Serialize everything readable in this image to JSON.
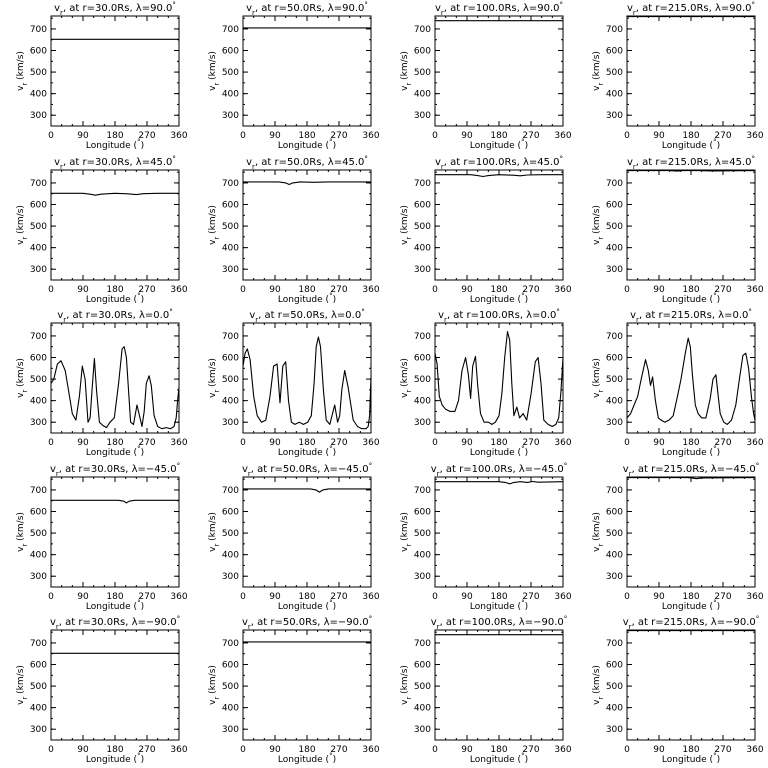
{
  "chart_data": [
    {
      "type": "line",
      "title": "v_r at r=30.0Rs, λ=90.0°",
      "r_label": "30.0",
      "lat_label": "90.0",
      "xlabel": "Longitude (°)",
      "ylabel": "v_r (km/s)",
      "xlim": [
        0,
        360
      ],
      "ylim": [
        250,
        760
      ],
      "xticks": [
        0,
        90,
        180,
        270,
        360
      ],
      "yticks": [
        300,
        400,
        500,
        600,
        700
      ],
      "x": [
        0,
        360
      ],
      "y": [
        652,
        652
      ]
    },
    {
      "type": "line",
      "title": "v_r at r=50.0Rs, λ=90.0°",
      "r_label": "50.0",
      "lat_label": "90.0",
      "xlabel": "Longitude (°)",
      "ylabel": "v_r (km/s)",
      "xlim": [
        0,
        360
      ],
      "ylim": [
        250,
        760
      ],
      "xticks": [
        0,
        90,
        180,
        270,
        360
      ],
      "yticks": [
        300,
        400,
        500,
        600,
        700
      ],
      "x": [
        0,
        360
      ],
      "y": [
        705,
        705
      ]
    },
    {
      "type": "line",
      "title": "v_r at r=100.0Rs, λ=90.0°",
      "r_label": "100.0",
      "lat_label": "90.0",
      "xlabel": "Longitude (°)",
      "ylabel": "v_r (km/s)",
      "xlim": [
        0,
        360
      ],
      "ylim": [
        250,
        760
      ],
      "xticks": [
        0,
        90,
        180,
        270,
        360
      ],
      "yticks": [
        300,
        400,
        500,
        600,
        700
      ],
      "x": [
        0,
        360
      ],
      "y": [
        738,
        738
      ]
    },
    {
      "type": "line",
      "title": "v_r at r=215.0Rs, λ=90.0°",
      "r_label": "215.0",
      "lat_label": "90.0",
      "xlabel": "Longitude (°)",
      "ylabel": "v_r (km/s)",
      "xlim": [
        0,
        360
      ],
      "ylim": [
        250,
        760
      ],
      "xticks": [
        0,
        90,
        180,
        270,
        360
      ],
      "yticks": [
        300,
        400,
        500,
        600,
        700
      ],
      "x": [
        0,
        360
      ],
      "y": [
        757,
        757
      ]
    },
    {
      "type": "line",
      "title": "v_r at r=30.0Rs, λ=45.0°",
      "r_label": "30.0",
      "lat_label": "45.0",
      "xlabel": "Longitude (°)",
      "ylabel": "v_r (km/s)",
      "xlim": [
        0,
        360
      ],
      "ylim": [
        250,
        760
      ],
      "xticks": [
        0,
        90,
        180,
        270,
        360
      ],
      "yticks": [
        300,
        400,
        500,
        600,
        700
      ],
      "x": [
        0,
        90,
        110,
        125,
        140,
        180,
        220,
        240,
        260,
        300,
        360
      ],
      "y": [
        652,
        652,
        648,
        643,
        648,
        652,
        649,
        646,
        650,
        652,
        652
      ]
    },
    {
      "type": "line",
      "title": "v_r at r=50.0Rs, λ=45.0°",
      "r_label": "50.0",
      "lat_label": "45.0",
      "xlabel": "Longitude (°)",
      "ylabel": "v_r (km/s)",
      "xlim": [
        0,
        360
      ],
      "ylim": [
        250,
        760
      ],
      "xticks": [
        0,
        90,
        180,
        270,
        360
      ],
      "yticks": [
        300,
        400,
        500,
        600,
        700
      ],
      "x": [
        0,
        100,
        120,
        130,
        140,
        160,
        200,
        240,
        360
      ],
      "y": [
        705,
        705,
        700,
        693,
        700,
        705,
        703,
        705,
        705
      ]
    },
    {
      "type": "line",
      "title": "v_r at r=100.0Rs, λ=45.0°",
      "r_label": "100.0",
      "lat_label": "45.0",
      "xlabel": "Longitude (°)",
      "ylabel": "v_r (km/s)",
      "xlim": [
        0,
        360
      ],
      "ylim": [
        250,
        760
      ],
      "xticks": [
        0,
        90,
        180,
        270,
        360
      ],
      "yticks": [
        300,
        400,
        500,
        600,
        700
      ],
      "x": [
        0,
        100,
        120,
        135,
        150,
        180,
        220,
        240,
        260,
        300,
        360
      ],
      "y": [
        738,
        738,
        734,
        730,
        734,
        738,
        736,
        733,
        737,
        738,
        738
      ]
    },
    {
      "type": "line",
      "title": "v_r at r=215.0Rs, λ=45.0°",
      "r_label": "215.0",
      "lat_label": "45.0",
      "xlabel": "Longitude (°)",
      "ylabel": "v_r (km/s)",
      "xlim": [
        0,
        360
      ],
      "ylim": [
        250,
        760
      ],
      "xticks": [
        0,
        90,
        180,
        270,
        360
      ],
      "yticks": [
        300,
        400,
        500,
        600,
        700
      ],
      "x": [
        0,
        120,
        140,
        160,
        200,
        240,
        360
      ],
      "y": [
        757,
        757,
        755,
        757,
        757,
        756,
        757
      ]
    },
    {
      "type": "line",
      "title": "v_r at r=30.0Rs, λ=0.0°",
      "r_label": "30.0",
      "lat_label": "0.0",
      "xlabel": "Longitude (°)",
      "ylabel": "v_r (km/s)",
      "xlim": [
        0,
        360
      ],
      "ylim": [
        250,
        760
      ],
      "xticks": [
        0,
        90,
        180,
        270,
        360
      ],
      "yticks": [
        300,
        400,
        500,
        600,
        700
      ],
      "x": [
        0,
        8,
        18,
        28,
        40,
        52,
        60,
        70,
        80,
        88,
        96,
        104,
        110,
        116,
        122,
        128,
        136,
        146,
        156,
        166,
        178,
        190,
        200,
        206,
        212,
        218,
        224,
        232,
        242,
        256,
        262,
        268,
        276,
        282,
        290,
        300,
        312,
        324,
        336,
        346,
        352,
        356,
        360
      ],
      "y": [
        480,
        500,
        570,
        585,
        540,
        420,
        340,
        310,
        420,
        560,
        500,
        300,
        320,
        460,
        595,
        450,
        300,
        285,
        275,
        300,
        320,
        480,
        640,
        650,
        600,
        450,
        300,
        290,
        380,
        280,
        350,
        480,
        515,
        470,
        330,
        280,
        270,
        275,
        270,
        280,
        320,
        400,
        460
      ]
    },
    {
      "type": "line",
      "title": "v_r at r=50.0Rs, λ=0.0°",
      "r_label": "50.0",
      "lat_label": "0.0",
      "xlabel": "Longitude (°)",
      "ylabel": "v_r (km/s)",
      "xlim": [
        0,
        360
      ],
      "ylim": [
        250,
        760
      ],
      "xticks": [
        0,
        90,
        180,
        270,
        360
      ],
      "yticks": [
        300,
        400,
        500,
        600,
        700
      ],
      "x": [
        0,
        6,
        12,
        20,
        30,
        40,
        52,
        64,
        76,
        86,
        96,
        104,
        112,
        120,
        128,
        136,
        146,
        158,
        170,
        182,
        192,
        200,
        206,
        212,
        218,
        226,
        234,
        244,
        258,
        266,
        272,
        278,
        286,
        296,
        310,
        322,
        334,
        346,
        352,
        356,
        360
      ],
      "y": [
        560,
        620,
        640,
        590,
        420,
        330,
        300,
        310,
        420,
        560,
        570,
        390,
        560,
        580,
        400,
        300,
        290,
        300,
        290,
        300,
        330,
        480,
        650,
        695,
        650,
        450,
        310,
        290,
        380,
        300,
        330,
        450,
        540,
        460,
        310,
        280,
        270,
        270,
        280,
        330,
        510
      ]
    },
    {
      "type": "line",
      "title": "v_r at r=100.0Rs, λ=0.0°",
      "r_label": "100.0",
      "lat_label": "0.0",
      "xlabel": "Longitude (°)",
      "ylabel": "v_r (km/s)",
      "xlim": [
        0,
        360
      ],
      "ylim": [
        250,
        760
      ],
      "xticks": [
        0,
        90,
        180,
        270,
        360
      ],
      "yticks": [
        300,
        400,
        500,
        600,
        700
      ],
      "x": [
        0,
        6,
        12,
        20,
        30,
        42,
        56,
        66,
        76,
        86,
        94,
        100,
        106,
        114,
        120,
        128,
        138,
        150,
        160,
        170,
        180,
        188,
        196,
        204,
        210,
        216,
        222,
        230,
        238,
        248,
        258,
        270,
        282,
        290,
        298,
        306,
        318,
        330,
        340,
        348,
        354,
        360
      ],
      "y": [
        620,
        570,
        420,
        380,
        360,
        350,
        350,
        400,
        540,
        600,
        520,
        410,
        560,
        605,
        470,
        340,
        300,
        300,
        290,
        300,
        330,
        430,
        600,
        720,
        680,
        480,
        330,
        370,
        320,
        340,
        310,
        430,
        580,
        600,
        480,
        310,
        290,
        280,
        290,
        320,
        440,
        600
      ]
    },
    {
      "type": "line",
      "title": "v_r at r=215.0Rs, λ=0.0°",
      "r_label": "215.0",
      "lat_label": "0.0",
      "xlabel": "Longitude (°)",
      "ylabel": "v_r (km/s)",
      "xlim": [
        0,
        360
      ],
      "ylim": [
        250,
        760
      ],
      "xticks": [
        0,
        90,
        180,
        270,
        360
      ],
      "yticks": [
        300,
        400,
        500,
        600,
        700
      ],
      "x": [
        0,
        10,
        20,
        30,
        40,
        52,
        60,
        66,
        72,
        80,
        88,
        96,
        106,
        118,
        130,
        142,
        152,
        164,
        172,
        178,
        184,
        192,
        200,
        210,
        222,
        234,
        242,
        250,
        256,
        262,
        272,
        282,
        294,
        306,
        316,
        326,
        334,
        342,
        350,
        356,
        360
      ],
      "y": [
        320,
        340,
        380,
        420,
        500,
        590,
        540,
        470,
        510,
        400,
        320,
        310,
        300,
        310,
        330,
        420,
        500,
        620,
        690,
        650,
        520,
        380,
        340,
        320,
        320,
        410,
        500,
        520,
        430,
        340,
        300,
        290,
        310,
        380,
        500,
        610,
        620,
        550,
        420,
        340,
        310
      ]
    },
    {
      "type": "line",
      "title": "v_r at r=30.0Rs, λ=-45.0°",
      "r_label": "30.0",
      "lat_label": "−45.0",
      "xlabel": "Longitude (°)",
      "ylabel": "v_r (km/s)",
      "xlim": [
        0,
        360
      ],
      "ylim": [
        250,
        760
      ],
      "xticks": [
        0,
        90,
        180,
        270,
        360
      ],
      "yticks": [
        300,
        400,
        500,
        600,
        700
      ],
      "x": [
        0,
        190,
        205,
        212,
        220,
        235,
        360
      ],
      "y": [
        652,
        652,
        648,
        640,
        648,
        652,
        652
      ]
    },
    {
      "type": "line",
      "title": "v_r at r=50.0Rs, λ=-45.0°",
      "r_label": "50.0",
      "lat_label": "−45.0",
      "xlabel": "Longitude (°)",
      "ylabel": "v_r (km/s)",
      "xlim": [
        0,
        360
      ],
      "ylim": [
        250,
        760
      ],
      "xticks": [
        0,
        90,
        180,
        270,
        360
      ],
      "yticks": [
        300,
        400,
        500,
        600,
        700
      ],
      "x": [
        0,
        190,
        205,
        215,
        225,
        240,
        360
      ],
      "y": [
        705,
        705,
        700,
        690,
        700,
        705,
        705
      ]
    },
    {
      "type": "line",
      "title": "v_r at r=100.0Rs, λ=-45.0°",
      "r_label": "100.0",
      "lat_label": "−45.0",
      "xlabel": "Longitude (°)",
      "ylabel": "v_r (km/s)",
      "xlim": [
        0,
        360
      ],
      "ylim": [
        250,
        760
      ],
      "xticks": [
        0,
        90,
        180,
        270,
        360
      ],
      "yticks": [
        300,
        400,
        500,
        600,
        700
      ],
      "x": [
        0,
        180,
        200,
        210,
        220,
        240,
        260,
        275,
        290,
        360
      ],
      "y": [
        738,
        738,
        734,
        728,
        734,
        738,
        735,
        739,
        736,
        738
      ]
    },
    {
      "type": "line",
      "title": "v_r at r=215.0Rs, λ=-45.0°",
      "r_label": "215.0",
      "lat_label": "−45.0",
      "xlabel": "Longitude (°)",
      "ylabel": "v_r (km/s)",
      "xlim": [
        0,
        360
      ],
      "ylim": [
        250,
        760
      ],
      "xticks": [
        0,
        90,
        180,
        270,
        360
      ],
      "yticks": [
        300,
        400,
        500,
        600,
        700
      ],
      "x": [
        0,
        170,
        185,
        195,
        210,
        360
      ],
      "y": [
        757,
        757,
        755,
        752,
        756,
        757
      ]
    },
    {
      "type": "line",
      "title": "v_r at r=30.0Rs, λ=-90.0°",
      "r_label": "30.0",
      "lat_label": "−90.0",
      "xlabel": "Longitude (°)",
      "ylabel": "v_r (km/s)",
      "xlim": [
        0,
        360
      ],
      "ylim": [
        250,
        760
      ],
      "xticks": [
        0,
        90,
        180,
        270,
        360
      ],
      "yticks": [
        300,
        400,
        500,
        600,
        700
      ],
      "x": [
        0,
        360
      ],
      "y": [
        652,
        652
      ]
    },
    {
      "type": "line",
      "title": "v_r at r=50.0Rs, λ=-90.0°",
      "r_label": "50.0",
      "lat_label": "−90.0",
      "xlabel": "Longitude (°)",
      "ylabel": "v_r (km/s)",
      "xlim": [
        0,
        360
      ],
      "ylim": [
        250,
        760
      ],
      "xticks": [
        0,
        90,
        180,
        270,
        360
      ],
      "yticks": [
        300,
        400,
        500,
        600,
        700
      ],
      "x": [
        0,
        360
      ],
      "y": [
        705,
        705
      ]
    },
    {
      "type": "line",
      "title": "v_r at r=100.0Rs, λ=-90.0°",
      "r_label": "100.0",
      "lat_label": "−90.0",
      "xlabel": "Longitude (°)",
      "ylabel": "v_r (km/s)",
      "xlim": [
        0,
        360
      ],
      "ylim": [
        250,
        760
      ],
      "xticks": [
        0,
        90,
        180,
        270,
        360
      ],
      "yticks": [
        300,
        400,
        500,
        600,
        700
      ],
      "x": [
        0,
        360
      ],
      "y": [
        738,
        738
      ]
    },
    {
      "type": "line",
      "title": "v_r at r=215.0Rs, λ=-90.0°",
      "r_label": "215.0",
      "lat_label": "−90.0",
      "xlabel": "Longitude (°)",
      "ylabel": "v_r (km/s)",
      "xlim": [
        0,
        360
      ],
      "ylim": [
        250,
        760
      ],
      "xticks": [
        0,
        90,
        180,
        270,
        360
      ],
      "yticks": [
        300,
        400,
        500,
        600,
        700
      ],
      "x": [
        0,
        360
      ],
      "y": [
        757,
        757
      ]
    }
  ],
  "labels": {
    "title_var": "v",
    "title_sub": "r",
    "title_at": ", at r=",
    "title_rs": "Rs, ",
    "title_lambda": "λ=",
    "title_deg": "°",
    "xlabel_text": "Longitude (",
    "xlabel_deg": "°",
    "xlabel_close": ")",
    "ylabel_var": "v",
    "ylabel_sub": "r",
    "ylabel_units": " (km/s)",
    "xtick_labels": [
      "0",
      "90",
      "180",
      "270",
      "360"
    ],
    "ytick_labels": [
      "300",
      "400",
      "500",
      "600",
      "700"
    ]
  }
}
